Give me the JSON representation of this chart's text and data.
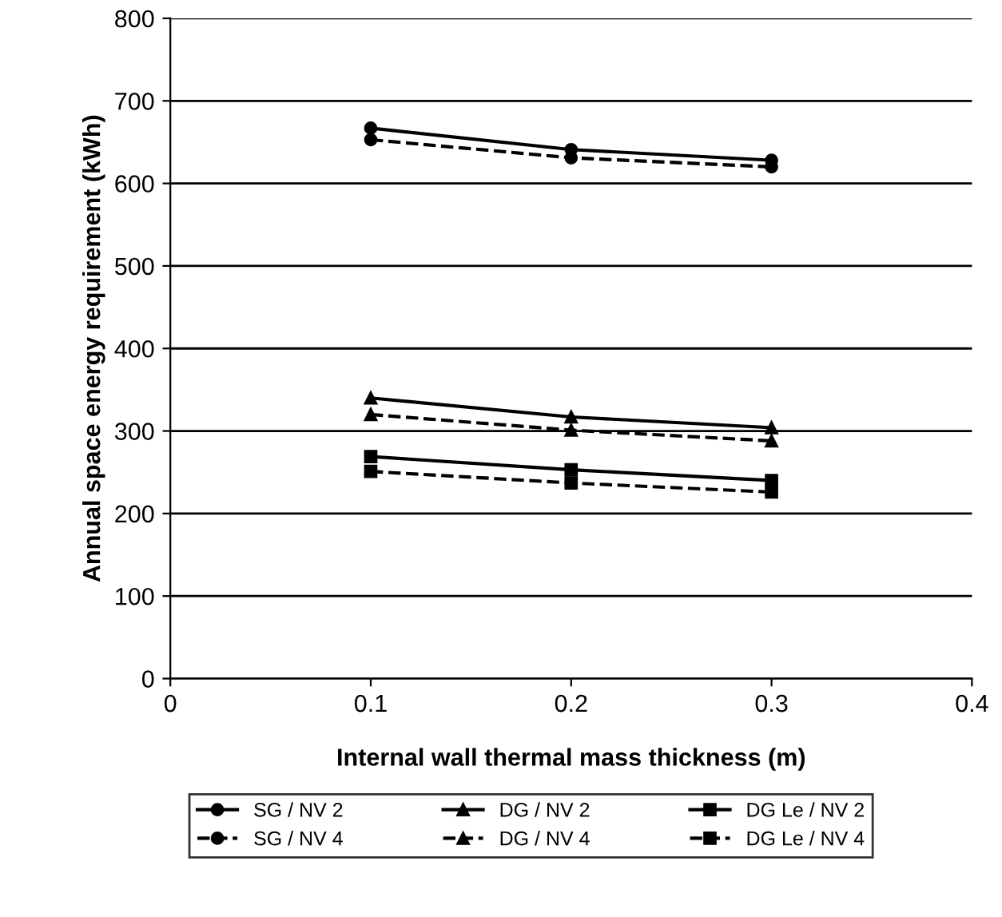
{
  "chart_data": {
    "type": "line",
    "xlabel": "Internal wall thermal mass thickness (m)",
    "ylabel": "Annual space energy requirement (kWh)",
    "x": [
      0.1,
      0.2,
      0.3
    ],
    "xlim": [
      0,
      0.4
    ],
    "xticks": [
      0,
      0.1,
      0.2,
      0.3,
      0.4
    ],
    "ylim": [
      0,
      800
    ],
    "yticks": [
      0,
      100,
      200,
      300,
      400,
      500,
      600,
      700,
      800
    ],
    "grid": "y",
    "legend": "bottom",
    "series": [
      {
        "name": "SG / NV 2",
        "color": "#000000",
        "marker": "circle",
        "line_style": "solid",
        "values": [
          667,
          641,
          628
        ]
      },
      {
        "name": "SG / NV 4",
        "color": "#000000",
        "marker": "circle",
        "line_style": "dashed",
        "values": [
          653,
          631,
          620
        ]
      },
      {
        "name": "DG / NV 2",
        "color": "#000000",
        "marker": "triangle",
        "line_style": "solid",
        "values": [
          340,
          317,
          304
        ]
      },
      {
        "name": "DG / NV 4",
        "color": "#000000",
        "marker": "triangle",
        "line_style": "dashed",
        "values": [
          320,
          301,
          288
        ]
      },
      {
        "name": "DG Le / NV 2",
        "color": "#000000",
        "marker": "square",
        "line_style": "solid",
        "values": [
          269,
          253,
          240
        ]
      },
      {
        "name": "DG Le / NV 4",
        "color": "#000000",
        "marker": "square",
        "line_style": "dashed",
        "values": [
          251,
          237,
          226
        ]
      }
    ]
  }
}
